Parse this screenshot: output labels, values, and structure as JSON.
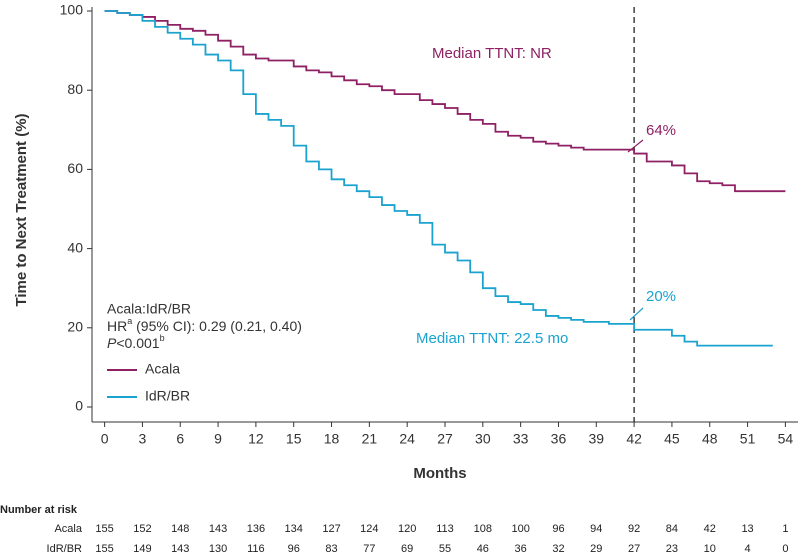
{
  "chart_data": {
    "type": "step",
    "y_label": "Time to Next Treatment (%)",
    "x_label": "Months",
    "xlim": [
      -1,
      55
    ],
    "ylim": [
      0,
      100
    ],
    "xticks": [
      0,
      3,
      6,
      9,
      12,
      15,
      18,
      21,
      24,
      27,
      30,
      33,
      36,
      39,
      42,
      45,
      48,
      51,
      54
    ],
    "yticks": [
      0,
      20,
      40,
      60,
      80,
      100
    ],
    "vline": 42,
    "legend": "lower left",
    "series": [
      {
        "name": "Acala",
        "color": "#8e2063",
        "x": [
          0,
          1,
          2,
          3,
          4,
          5,
          6,
          7,
          8,
          9,
          10,
          11,
          12,
          13,
          15,
          16,
          17,
          18,
          19,
          20,
          21,
          22,
          23,
          25,
          26,
          27,
          28,
          29,
          30,
          31,
          32,
          33,
          34,
          35,
          36,
          37,
          38,
          42,
          43,
          45,
          46,
          47,
          48,
          49,
          50,
          54
        ],
        "values": [
          100,
          99.5,
          99,
          98.5,
          97.5,
          96.5,
          95.5,
          95,
          94,
          92.5,
          91,
          89,
          88,
          87.5,
          86,
          85,
          84.5,
          83.5,
          82.5,
          81.5,
          81,
          80,
          79,
          77.5,
          76.5,
          75.5,
          74,
          72.5,
          71.5,
          69.5,
          68.5,
          68,
          67,
          66.5,
          66,
          65.5,
          65,
          64,
          62,
          61,
          59,
          57,
          56.5,
          56,
          54.5,
          54.5
        ]
      },
      {
        "name": "IdR/BR",
        "color": "#1ba3cf",
        "x": [
          0,
          1,
          2,
          3,
          4,
          5,
          6,
          7,
          8,
          9,
          10,
          11,
          12,
          13,
          14,
          15,
          16,
          17,
          18,
          19,
          20,
          21,
          22,
          23,
          24,
          25,
          26,
          27,
          28,
          29,
          30,
          31,
          32,
          33,
          34,
          35,
          36,
          37,
          38,
          40,
          42,
          45,
          46,
          47,
          53
        ],
        "values": [
          100,
          99.5,
          99,
          97.5,
          96,
          94.5,
          93,
          91.5,
          89,
          87.5,
          85,
          79,
          74,
          72.5,
          71,
          66,
          62,
          60,
          57.5,
          56,
          54.5,
          53,
          51,
          49.5,
          48.5,
          46.5,
          41,
          39,
          37,
          34,
          30,
          28,
          26.5,
          26,
          24.5,
          23,
          22.5,
          22,
          21.5,
          21,
          19.5,
          18,
          16.5,
          15.5,
          15.5
        ]
      }
    ],
    "annotations": [
      {
        "text": "Median TTNT: NR",
        "color": "#8e2063"
      },
      {
        "text": "64%",
        "color": "#8e2063"
      },
      {
        "text": "20%",
        "color": "#1ba3cf"
      },
      {
        "text": "Median TTNT: 22.5 mo",
        "color": "#1ba3cf"
      }
    ],
    "stats": {
      "comparison": "Acala:IdR/BR",
      "hr": {
        "main": "HR",
        "sup": "a",
        "rest": " (95% CI): 0.29 (0.21, 0.40)"
      },
      "p": {
        "italic": "P",
        "rest": "<0.001",
        "sup": "b"
      }
    },
    "risk_table": {
      "title": "Number at risk",
      "rows": [
        {
          "label": "Acala",
          "counts": [
            "155",
            "152",
            "148",
            "143",
            "136",
            "134",
            "127",
            "124",
            "120",
            "113",
            "108",
            "100",
            "96",
            "94",
            "92",
            "84",
            "42",
            "13",
            "1"
          ]
        },
        {
          "label": "IdR/BR",
          "counts": [
            "155",
            "149",
            "143",
            "130",
            "116",
            "96",
            "83",
            "77",
            "69",
            "55",
            "46",
            "36",
            "32",
            "29",
            "27",
            "23",
            "10",
            "4",
            "0"
          ]
        }
      ]
    }
  }
}
